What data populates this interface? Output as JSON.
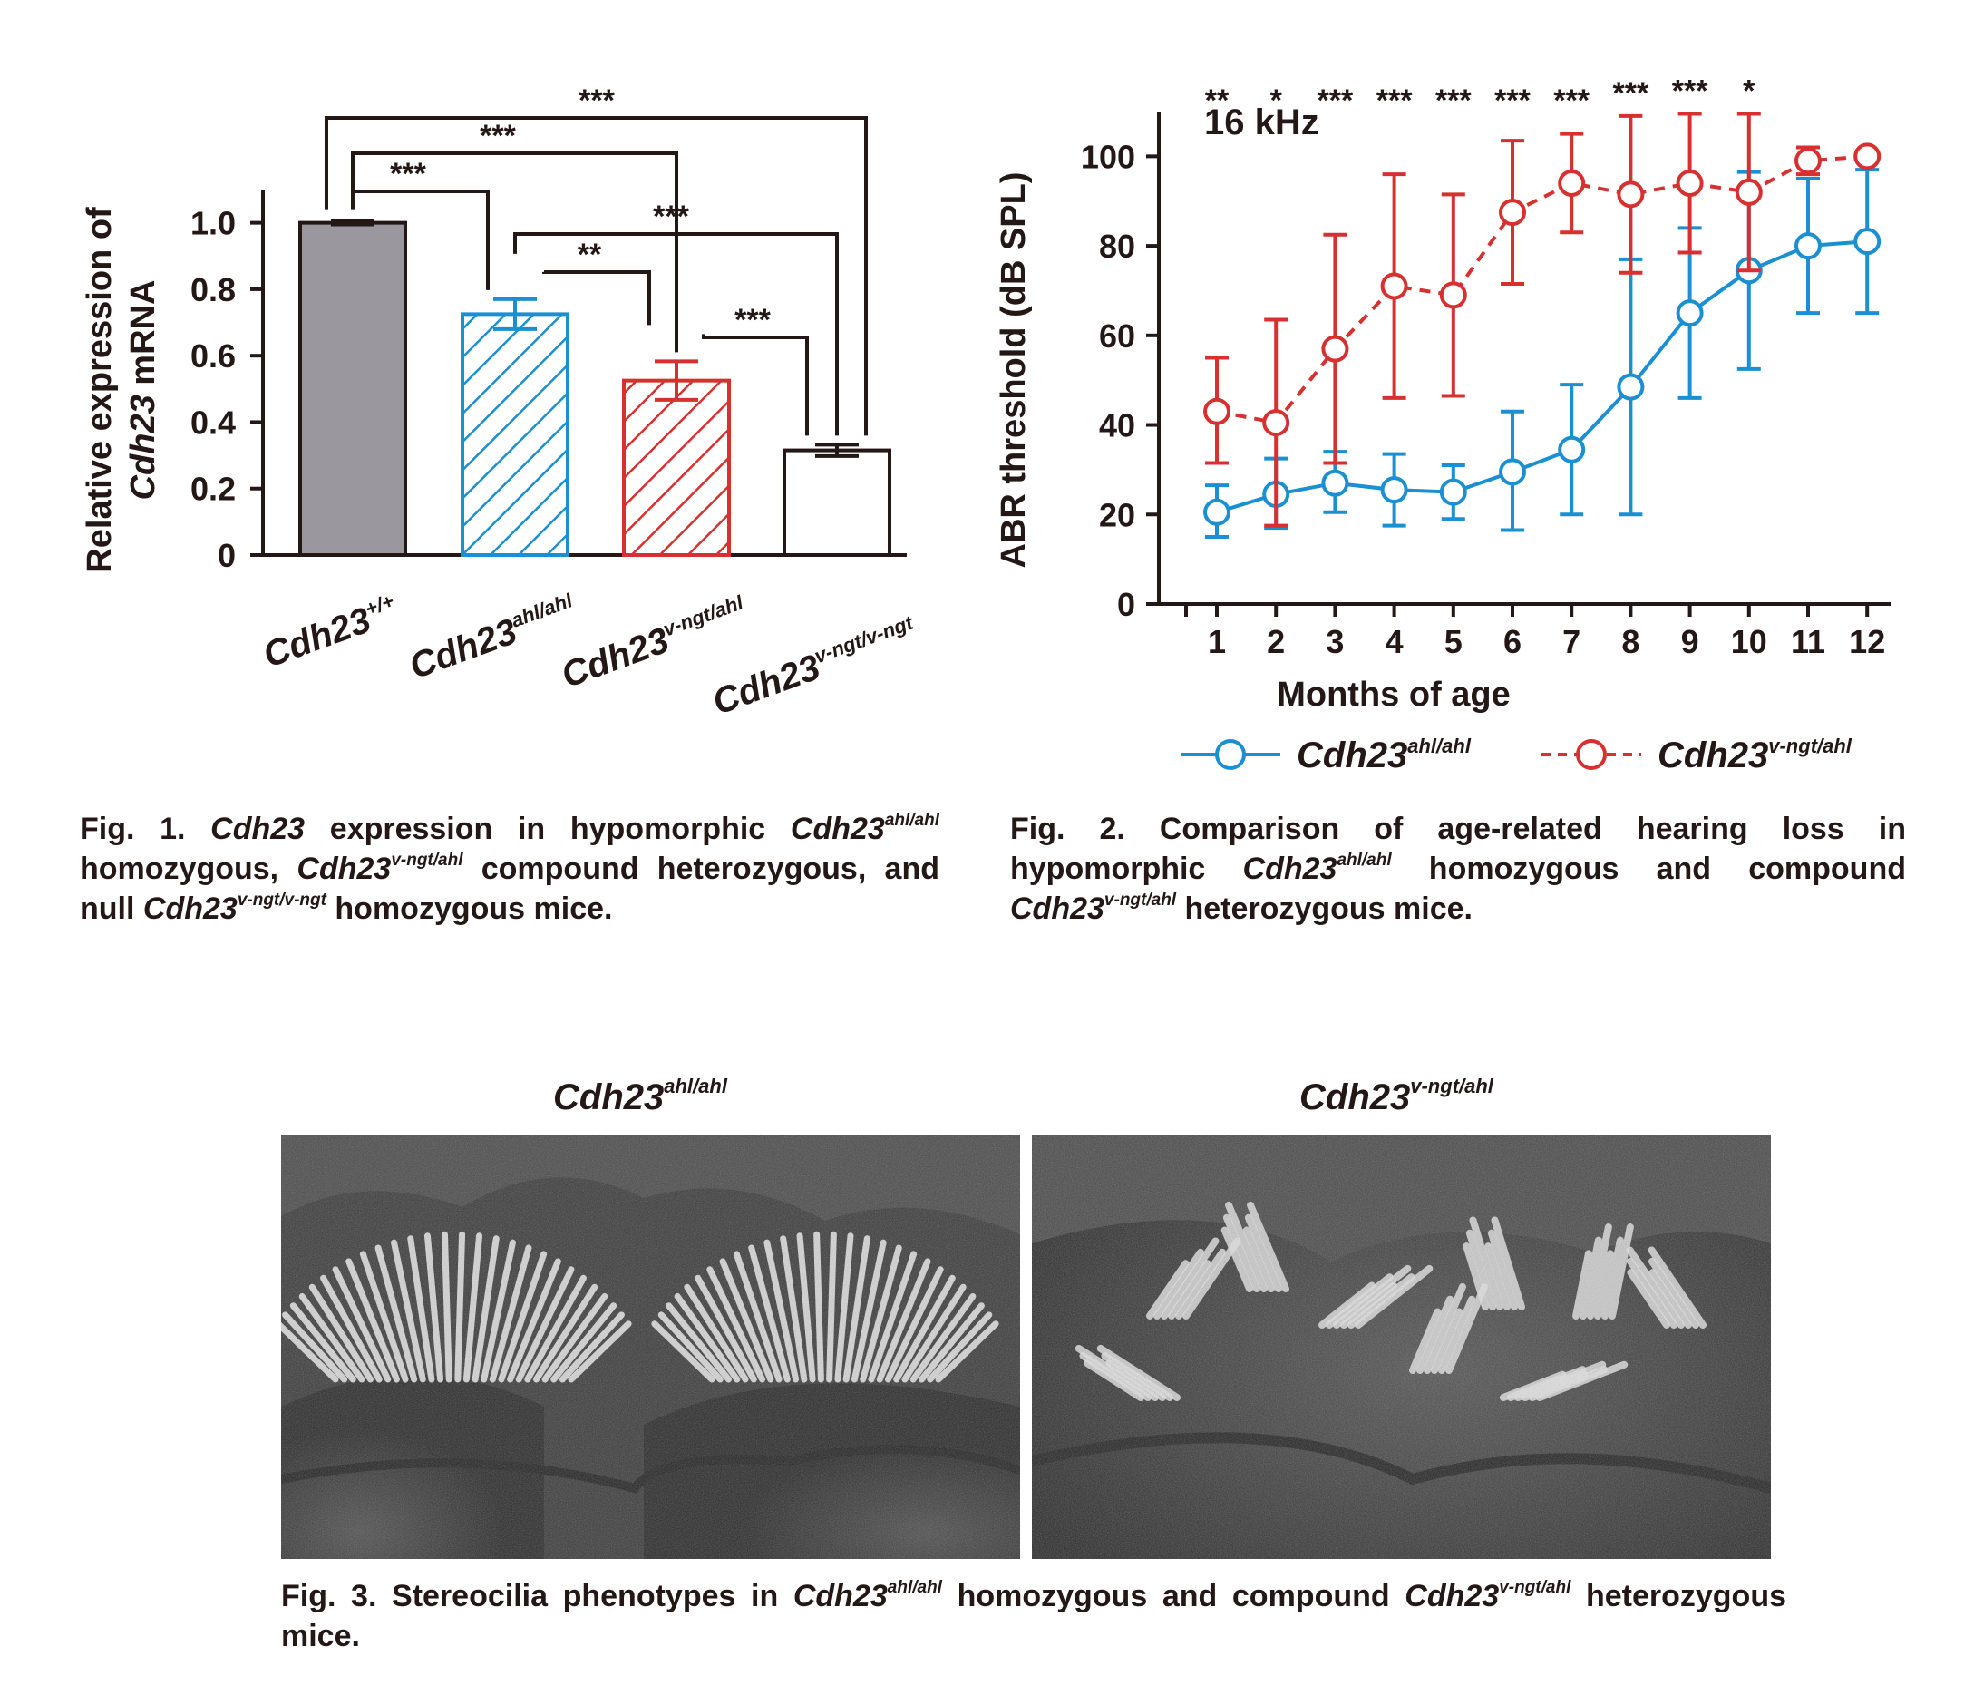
{
  "colors": {
    "ink": "#231815",
    "grey_bar": "#9b979e",
    "blue": "#1a8fd1",
    "red": "#d82f2f"
  },
  "fig1": {
    "caption_label": "Fig. 1.",
    "caption_gene": "Cdh23",
    "caption_t1": " expression in hypomorphic ",
    "caption_gene2": "Cdh23",
    "caption_sup2": "ahl/ahl",
    "caption_t2": " homozygous, ",
    "caption_gene3": "Cdh23",
    "caption_sup3": "v-ngt/ahl",
    "caption_t3": " compound heterozygous, and null ",
    "caption_gene4": "Cdh23",
    "caption_sup4": "v-ngt/v-ngt",
    "caption_t4": " homozygous mice."
  },
  "fig2": {
    "caption_label": "Fig. 2.",
    "caption_t1": " Comparison of age-related hearing loss in hypomorphic ",
    "caption_gene1": "Cdh23",
    "caption_sup1": "ahl/ahl",
    "caption_t2": " homozygous and compound ",
    "caption_gene2": "Cdh23",
    "caption_sup2": "v-ngt/ahl",
    "caption_t3": " heterozygous mice."
  },
  "fig3": {
    "left_title_gene": "Cdh23",
    "left_title_sup": "ahl/ahl",
    "right_title_gene": "Cdh23",
    "right_title_sup": "v-ngt/ahl",
    "caption_label": "Fig. 3.",
    "caption_t1": " Stereocilia phenotypes in ",
    "caption_gene1": "Cdh23",
    "caption_sup1": "ahl/ahl",
    "caption_t2": " homozygous and compound ",
    "caption_gene2": "Cdh23",
    "caption_sup2": "v-ngt/ahl",
    "caption_t3": " heterozygous mice."
  },
  "chart_data": [
    {
      "type": "bar",
      "ylabel_line1": "Relative expression of",
      "ylabel_gene": "Cdh23",
      "ylabel_rest": " mRNA",
      "ylim": [
        0,
        1.1
      ],
      "yticks": [
        0,
        0.2,
        0.4,
        0.6,
        0.8,
        1.0
      ],
      "ytick_labels": [
        "0",
        "0.2",
        "0.4",
        "0.6",
        "0.8",
        "1.0"
      ],
      "categories": [
        {
          "base": "Cdh23",
          "sup": "+/+"
        },
        {
          "base": "Cdh23",
          "sup": "ahl/ahl"
        },
        {
          "base": "Cdh23",
          "sup": "v-ngt/ahl"
        },
        {
          "base": "Cdh23",
          "sup": "v-ngt/v-ngt"
        }
      ],
      "values": [
        1.0,
        0.725,
        0.525,
        0.315
      ],
      "errors": [
        0.005,
        0.045,
        0.058,
        0.017
      ],
      "fills": [
        "solid-grey",
        "blue-hatch",
        "red-hatch",
        "white"
      ],
      "significance": [
        {
          "from": 0,
          "to": 1,
          "label": "***"
        },
        {
          "from": 0,
          "to": 2,
          "label": "***"
        },
        {
          "from": 0,
          "to": 3,
          "label": "***"
        },
        {
          "from": 1,
          "to": 2,
          "label": "**"
        },
        {
          "from": 1,
          "to": 3,
          "label": "***"
        },
        {
          "from": 2,
          "to": 3,
          "label": "***"
        }
      ]
    },
    {
      "type": "line",
      "annotation": "16 kHz",
      "xlabel": "Months of age",
      "ylabel": "ABR threshold (dB SPL)",
      "x": [
        1,
        2,
        3,
        4,
        5,
        6,
        7,
        8,
        9,
        10,
        11,
        12
      ],
      "xlim": [
        0,
        12.5
      ],
      "ylim": [
        0,
        110
      ],
      "yticks": [
        0,
        20,
        40,
        60,
        80,
        100
      ],
      "series": [
        {
          "name_gene": "Cdh23",
          "name_sup": "ahl/ahl",
          "style": "solid",
          "values": [
            20.5,
            24.5,
            27,
            25.5,
            25,
            29.5,
            34.5,
            48.5,
            65,
            74.5,
            80,
            81
          ],
          "err_up": [
            6,
            8,
            7,
            8,
            6,
            13.5,
            14.5,
            28.5,
            19,
            22,
            15,
            16
          ],
          "err_down": [
            5.5,
            7.5,
            6.5,
            8,
            6,
            13,
            14.5,
            28.5,
            19,
            22,
            15,
            16
          ]
        },
        {
          "name_gene": "Cdh23",
          "name_sup": "v-ngt/ahl",
          "style": "dashed",
          "values": [
            43,
            40.5,
            57,
            71,
            69,
            87.5,
            94,
            91.5,
            94,
            92,
            99,
            100
          ],
          "err_up": [
            12,
            23,
            25.5,
            25,
            22.5,
            16,
            11,
            17.5,
            15.5,
            17.5,
            3,
            0.5
          ],
          "err_down": [
            11.5,
            23,
            25.5,
            25,
            22.5,
            16,
            11,
            17.5,
            15.5,
            17.5,
            3,
            0.5
          ]
        }
      ],
      "significance": [
        "**",
        "*",
        "***",
        "***",
        "***",
        "***",
        "***",
        "***",
        "***",
        "*",
        "",
        ""
      ]
    }
  ]
}
